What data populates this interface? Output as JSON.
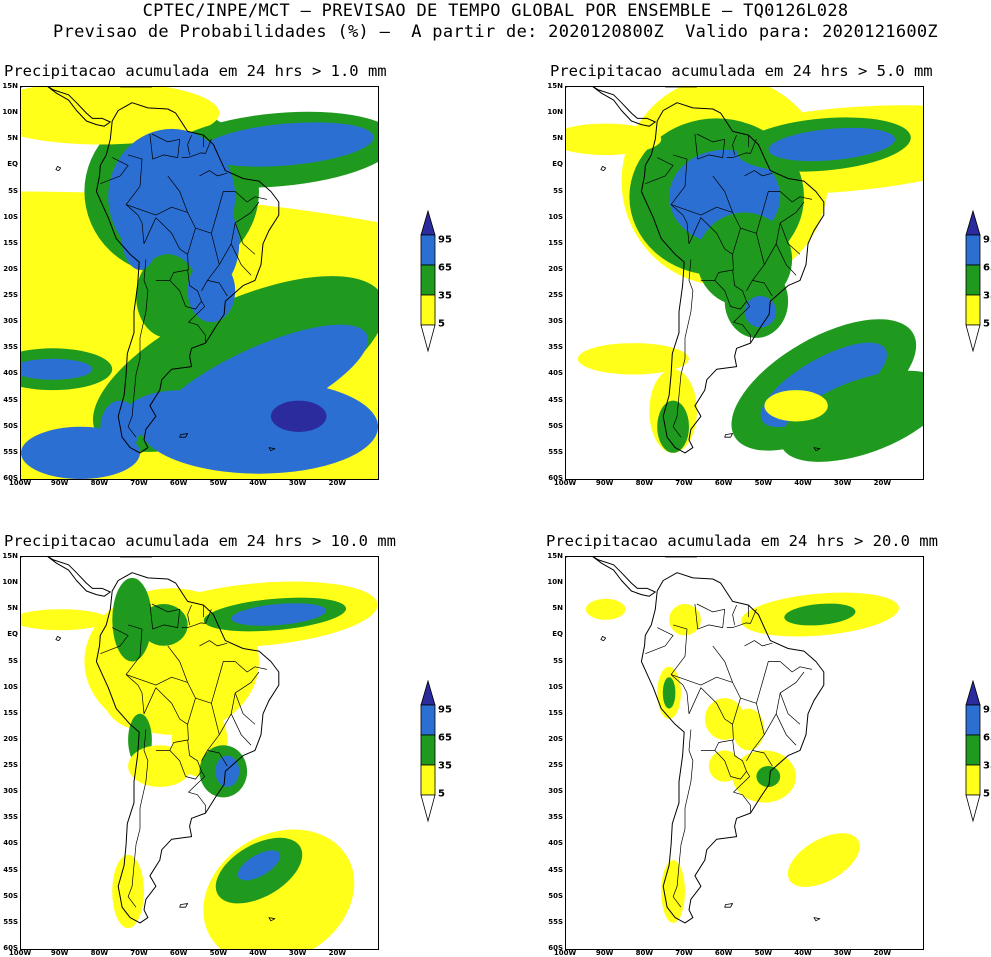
{
  "header": {
    "line1": "CPTEC/INPE/MCT — PREVISAO DE TEMPO GLOBAL POR ENSEMBLE — TQ0126L028",
    "line2": "Previsao de Probabilidades (%) —  A partir de: 2020120800Z  Valido para: 2020121600Z"
  },
  "axes": {
    "lat_labels": [
      "15N",
      "10N",
      "5N",
      "EQ",
      "5S",
      "10S",
      "15S",
      "20S",
      "25S",
      "30S",
      "35S",
      "40S",
      "45S",
      "50S",
      "55S",
      "60S"
    ],
    "lon_labels": [
      "100W",
      "90W",
      "80W",
      "70W",
      "60W",
      "50W",
      "40W",
      "30W",
      "20W"
    ]
  },
  "legend": {
    "levels": [
      "95",
      "65",
      "35",
      "5"
    ],
    "colors": {
      "c95": "#2b2b9e",
      "c65": "#2c6fd3",
      "c35": "#1f9a1f",
      "c5": "#ffff1a"
    }
  },
  "panels": [
    {
      "title": "Precipitacao acumulada em 24 hrs > 1.0 mm",
      "coverage": 3
    },
    {
      "title": "Precipitacao acumulada em 24 hrs > 5.0 mm",
      "coverage": 2
    },
    {
      "title": "Precipitacao acumulada em 24 hrs > 10.0 mm",
      "coverage": 1
    },
    {
      "title": "Precipitacao acumulada em 24 hrs > 20.0 mm",
      "coverage": 0
    }
  ]
}
